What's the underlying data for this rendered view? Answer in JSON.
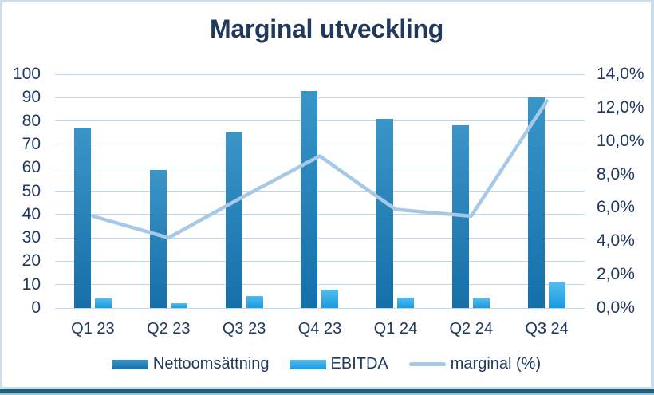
{
  "chart_data": {
    "type": "combo-bar-line",
    "title": "Marginal utveckling",
    "categories": [
      "Q1 23",
      "Q2 23",
      "Q3 23",
      "Q4 23",
      "Q1 24",
      "Q2 24",
      "Q3 24"
    ],
    "series": [
      {
        "name": "Nettoomsättning",
        "type": "bar",
        "axis": "left",
        "values": [
          77,
          59,
          75,
          93,
          81,
          78,
          90
        ],
        "color_top": "#3a95c8",
        "color_bottom": "#156fa9"
      },
      {
        "name": "EBITDA",
        "type": "bar",
        "axis": "left",
        "values": [
          4,
          2,
          5,
          8,
          4.5,
          4,
          11
        ],
        "color_top": "#53bcef",
        "color_bottom": "#189bdf"
      },
      {
        "name": "marginal (%)",
        "type": "line",
        "axis": "right",
        "values": [
          5.5,
          4.2,
          6.7,
          9.1,
          5.9,
          5.5,
          12.4
        ],
        "color": "#a8c9e6"
      }
    ],
    "left_axis": {
      "min": 0,
      "max": 100,
      "step": 10,
      "tick_labels": [
        "100",
        "90",
        "80",
        "70",
        "60",
        "50",
        "40",
        "30",
        "20",
        "10",
        "0"
      ]
    },
    "right_axis": {
      "min": 0,
      "max": 14,
      "step": 2,
      "tick_labels": [
        "14,0%",
        "12,0%",
        "10,0%",
        "8,0%",
        "6,0%",
        "4,0%",
        "2,0%",
        "0,0%"
      ]
    },
    "grid": true,
    "legend_position": "bottom",
    "gridline_color": "#bdd7ee",
    "text_color": "#20395c",
    "accent_strip_color": "#1e6078",
    "accent_strip_edge_color": "#9cc3de"
  }
}
